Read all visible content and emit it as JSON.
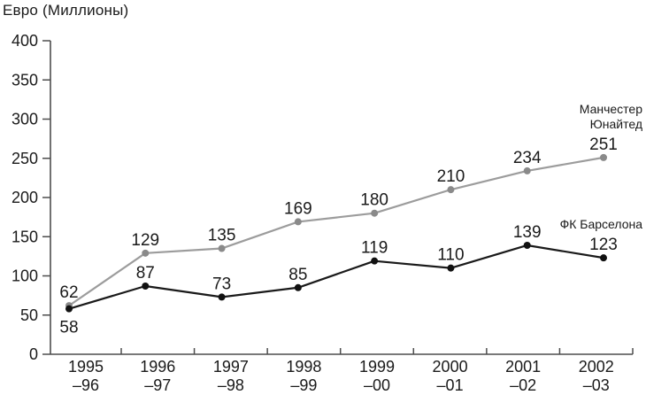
{
  "page": {
    "background": "#ffffff"
  },
  "chart_data": {
    "type": "line",
    "title": "Евро (Миллионы)",
    "xlabel": "",
    "ylabel": "",
    "ylim": [
      0,
      400
    ],
    "yticks": [
      0,
      50,
      100,
      150,
      200,
      250,
      300,
      350,
      400
    ],
    "grid": false,
    "legend_position": "right-of-line-end",
    "categories": [
      [
        "1995",
        "–96"
      ],
      [
        "1996",
        "–97"
      ],
      [
        "1997",
        "–98"
      ],
      [
        "1998",
        "–99"
      ],
      [
        "1999",
        "–00"
      ],
      [
        "2000",
        "–01"
      ],
      [
        "2001",
        "–02"
      ],
      [
        "2002",
        "–03"
      ]
    ],
    "series": [
      {
        "id": "manchester-united",
        "name": "Манчестер Юнайтед",
        "legend_lines": [
          "Манчестер",
          "Юнайтед"
        ],
        "color": "#9c9c9c",
        "marker_color": "#8a8a8a",
        "values": [
          62,
          129,
          135,
          169,
          180,
          210,
          234,
          251
        ],
        "label_pos": [
          "above",
          "above",
          "above",
          "above",
          "above",
          "above",
          "above",
          "above"
        ]
      },
      {
        "id": "fc-barcelona",
        "name": "ФК Барселона",
        "legend_lines": [
          "ФК Барселона"
        ],
        "color": "#1a1a1a",
        "marker_color": "#111111",
        "values": [
          58,
          87,
          73,
          85,
          119,
          110,
          139,
          123
        ],
        "label_pos": [
          "below",
          "above",
          "above",
          "above",
          "above",
          "above",
          "above",
          "above"
        ]
      }
    ],
    "text_color": "#1a1a1a",
    "axis_color": "#4d4d4d"
  }
}
